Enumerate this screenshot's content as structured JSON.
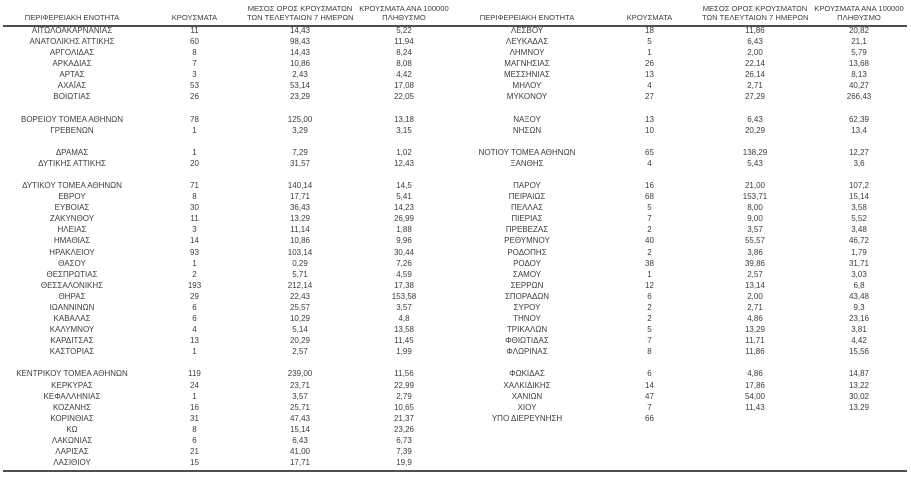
{
  "colors": {
    "text": "#3d3d3d",
    "rule": "#4d4f53",
    "background": "#ffffff"
  },
  "table": {
    "headers": {
      "region": "ΠΕΡΙΦΕΡΕΙΑΚΗ ΕΝΟΤΗΤΑ",
      "cases": "ΚΡΟΥΣΜΑΤΑ",
      "avg7_line1": "ΜΕΣΟΣ ΟΡΟΣ ΚΡΟΥΣΜΑΤΩΝ",
      "avg7_line2": "ΤΩΝ ΤΕΛΕΥΤΑΙΩΝ 7 ΗΜΕΡΩΝ",
      "per100k_line1": "ΚΡΟΥΣΜΑΤΑ ΑΝΑ 100000",
      "per100k_line2": "ΠΛΗΘΥΣΜΟ"
    },
    "left_rows": [
      [
        "ΑΙΤΩΛΟΑΚΑΡΝΑΝΙΑΣ",
        "11",
        "14,43",
        "5,22"
      ],
      [
        "ΑΝΑΤΟΛΙΚΗΣ ΑΤΤΙΚΗΣ",
        "60",
        "98,43",
        "11,94"
      ],
      [
        "ΑΡΓΟΛΙΔΑΣ",
        "8",
        "14,43",
        "8,24"
      ],
      [
        "ΑΡΚΑΔΙΑΣ",
        "7",
        "10,86",
        "8,08"
      ],
      [
        "ΑΡΤΑΣ",
        "3",
        "2,43",
        "4,42"
      ],
      [
        "ΑΧΑΪΑΣ",
        "53",
        "53,14",
        "17,08"
      ],
      [
        "ΒΟΙΩΤΙΑΣ",
        "26",
        "23,29",
        "22,05"
      ],
      null,
      [
        "ΒΟΡΕΙΟΥ ΤΟΜΕΑ ΑΘΗΝΩΝ",
        "78",
        "125,00",
        "13,18"
      ],
      [
        "ΓΡΕΒΕΝΩΝ",
        "1",
        "3,29",
        "3,15"
      ],
      null,
      [
        "ΔΡΑΜΑΣ",
        "1",
        "7,29",
        "1,02"
      ],
      [
        "ΔΥΤΙΚΗΣ ΑΤΤΙΚΗΣ",
        "20",
        "31,57",
        "12,43"
      ],
      null,
      [
        "ΔΥΤΙΚΟΥ ΤΟΜΕΑ ΑΘΗΝΩΝ",
        "71",
        "140,14",
        "14,5"
      ],
      [
        "ΕΒΡΟΥ",
        "8",
        "17,71",
        "5,41"
      ],
      [
        "ΕΥΒΟΙΑΣ",
        "30",
        "36,43",
        "14,23"
      ],
      [
        "ΖΑΚΥΝΘΟΥ",
        "11",
        "13,29",
        "26,99"
      ],
      [
        "ΗΛΕΙΑΣ",
        "3",
        "11,14",
        "1,88"
      ],
      [
        "ΗΜΑΘΙΑΣ",
        "14",
        "10,86",
        "9,96"
      ],
      [
        "ΗΡΑΚΛΕΙΟΥ",
        "93",
        "103,14",
        "30,44"
      ],
      [
        "ΘΑΣΟΥ",
        "1",
        "0,29",
        "7,26"
      ],
      [
        "ΘΕΣΠΡΩΤΙΑΣ",
        "2",
        "5,71",
        "4,59"
      ],
      [
        "ΘΕΣΣΑΛΟΝΙΚΗΣ",
        "193",
        "212,14",
        "17,38"
      ],
      [
        "ΘΗΡΑΣ",
        "29",
        "22,43",
        "153,58"
      ],
      [
        "ΙΩΑΝΝΙΝΩΝ",
        "6",
        "25,57",
        "3,57"
      ],
      [
        "ΚΑΒΑΛΑΣ",
        "6",
        "10,29",
        "4,8"
      ],
      [
        "ΚΑΛΥΜΝΟΥ",
        "4",
        "5,14",
        "13,58"
      ],
      [
        "ΚΑΡΔΙΤΣΑΣ",
        "13",
        "20,29",
        "11,45"
      ],
      [
        "ΚΑΣΤΟΡΙΑΣ",
        "1",
        "2,57",
        "1,99"
      ],
      null,
      [
        "ΚΕΝΤΡΙΚΟΥ ΤΟΜΕΑ ΑΘΗΝΩΝ",
        "119",
        "239,00",
        "11,56"
      ],
      [
        "ΚΕΡΚΥΡΑΣ",
        "24",
        "23,71",
        "22,99"
      ],
      [
        "ΚΕΦΑΛΛΗΝΙΑΣ",
        "1",
        "3,57",
        "2,79"
      ],
      [
        "ΚΟΖΑΝΗΣ",
        "16",
        "25,71",
        "10,65"
      ],
      [
        "ΚΟΡΙΝΘΙΑΣ",
        "31",
        "47,43",
        "21,37"
      ],
      [
        "ΚΩ",
        "8",
        "15,14",
        "23,26"
      ],
      [
        "ΛΑΚΩΝΙΑΣ",
        "6",
        "6,43",
        "6,73"
      ],
      [
        "ΛΑΡΙΣΑΣ",
        "21",
        "41,00",
        "7,39"
      ],
      [
        "ΛΑΣΙΘΙΟΥ",
        "15",
        "17,71",
        "19,9"
      ]
    ],
    "right_rows": [
      [
        "ΛΕΣΒΟΥ",
        "18",
        "11,86",
        "20,82"
      ],
      [
        "ΛΕΥΚΑΔΑΣ",
        "5",
        "6,43",
        "21,1"
      ],
      [
        "ΛΗΜΝΟΥ",
        "1",
        "2,00",
        "5,79"
      ],
      [
        "ΜΑΓΝΗΣΙΑΣ",
        "26",
        "22,14",
        "13,68"
      ],
      [
        "ΜΕΣΣΗΝΙΑΣ",
        "13",
        "26,14",
        "8,13"
      ],
      [
        "ΜΗΛΟΥ",
        "4",
        "2,71",
        "40,27"
      ],
      [
        "ΜΥΚΟΝΟΥ",
        "27",
        "27,29",
        "266,43"
      ],
      null,
      [
        "ΝΑΞΟΥ",
        "13",
        "6,43",
        "62,39"
      ],
      [
        "ΝΗΣΩΝ",
        "10",
        "20,29",
        "13,4"
      ],
      null,
      [
        "ΝΟΤΙΟΥ ΤΟΜΕΑ ΑΘΗΝΩΝ",
        "65",
        "138,29",
        "12,27"
      ],
      [
        "ΞΑΝΘΗΣ",
        "4",
        "5,43",
        "3,6"
      ],
      null,
      [
        "ΠΑΡΟΥ",
        "16",
        "21,00",
        "107,2"
      ],
      [
        "ΠΕΙΡΑΙΩΣ",
        "68",
        "153,71",
        "15,14"
      ],
      [
        "ΠΕΛΛΑΣ",
        "5",
        "8,00",
        "3,58"
      ],
      [
        "ΠΙΕΡΙΑΣ",
        "7",
        "9,00",
        "5,52"
      ],
      [
        "ΠΡΕΒΕΖΑΣ",
        "2",
        "3,57",
        "3,48"
      ],
      [
        "ΡΕΘΥΜΝΟΥ",
        "40",
        "55,57",
        "46,72"
      ],
      [
        "ΡΟΔΟΠΗΣ",
        "2",
        "3,86",
        "1,79"
      ],
      [
        "ΡΟΔΟΥ",
        "38",
        "39,86",
        "31,71"
      ],
      [
        "ΣΑΜΟΥ",
        "1",
        "2,57",
        "3,03"
      ],
      [
        "ΣΕΡΡΩΝ",
        "12",
        "13,14",
        "6,8"
      ],
      [
        "ΣΠΟΡΑΔΩΝ",
        "6",
        "2,00",
        "43,48"
      ],
      [
        "ΣΥΡΟΥ",
        "2",
        "2,71",
        "9,3"
      ],
      [
        "ΤΗΝΟΥ",
        "2",
        "4,86",
        "23,16"
      ],
      [
        "ΤΡΙΚΑΛΩΝ",
        "5",
        "13,29",
        "3,81"
      ],
      [
        "ΦΘΙΩΤΙΔΑΣ",
        "7",
        "11,71",
        "4,42"
      ],
      [
        "ΦΛΩΡΙΝΑΣ",
        "8",
        "11,86",
        "15,56"
      ],
      null,
      [
        "ΦΩΚΙΔΑΣ",
        "6",
        "4,86",
        "14,87"
      ],
      [
        "ΧΑΛΚΙΔΙΚΗΣ",
        "14",
        "17,86",
        "13,22"
      ],
      [
        "ΧΑΝΙΩΝ",
        "47",
        "54,00",
        "30,02"
      ],
      [
        "ΧΙΟΥ",
        "7",
        "11,43",
        "13,29"
      ],
      [
        "ΥΠΟ ΔΙΕΡΕΥΝΗΣΗ",
        "66",
        "",
        ""
      ],
      null,
      null,
      null,
      null
    ]
  }
}
